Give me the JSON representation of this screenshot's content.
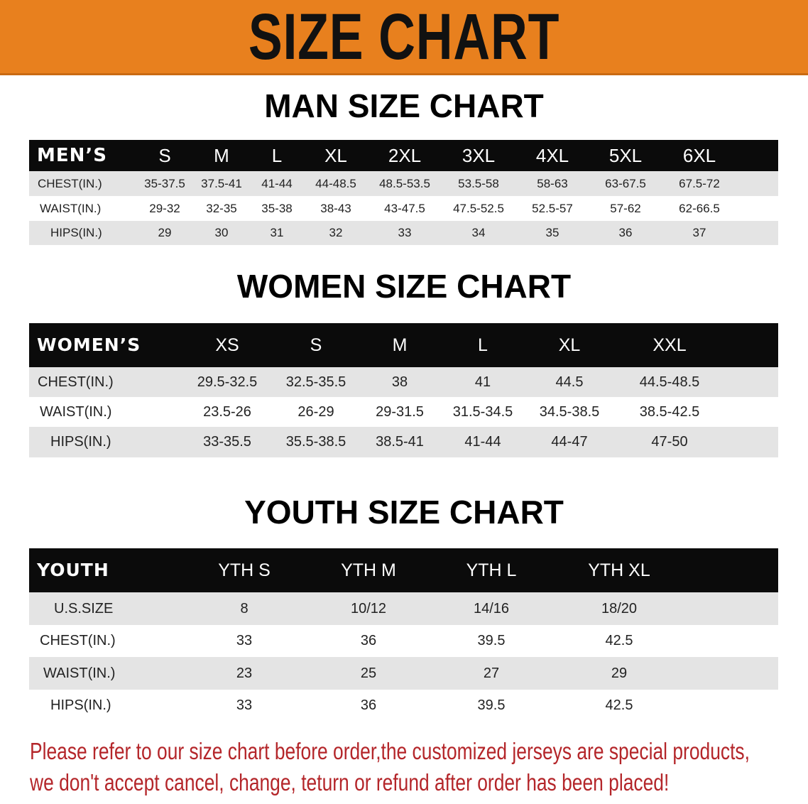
{
  "banner_title": "SIZE CHART",
  "men": {
    "title": "MAN SIZE CHART",
    "header": [
      "MEN’S",
      "S",
      "M",
      "L",
      "XL",
      "2XL",
      "3XL",
      "4XL",
      "5XL",
      "6XL"
    ],
    "rows": [
      [
        "CHEST(IN.)",
        "35-37.5",
        "37.5-41",
        "41-44",
        "44-48.5",
        "48.5-53.5",
        "53.5-58",
        "58-63",
        "63-67.5",
        "67.5-72"
      ],
      [
        "WAIST(IN.)",
        "29-32",
        "32-35",
        "35-38",
        "38-43",
        "43-47.5",
        "47.5-52.5",
        "52.5-57",
        "57-62",
        "62-66.5"
      ],
      [
        "HIPS(IN.)",
        "29",
        "30",
        "31",
        "32",
        "33",
        "34",
        "35",
        "36",
        "37"
      ]
    ]
  },
  "women": {
    "title": "WOMEN SIZE CHART",
    "header": [
      "WOMEN’S",
      "XS",
      "S",
      "M",
      "L",
      "XL",
      "XXL"
    ],
    "rows": [
      [
        "CHEST(IN.)",
        "29.5-32.5",
        "32.5-35.5",
        "38",
        "41",
        "44.5",
        "44.5-48.5"
      ],
      [
        "WAIST(IN.)",
        "23.5-26",
        "26-29",
        "29-31.5",
        "31.5-34.5",
        "34.5-38.5",
        "38.5-42.5"
      ],
      [
        "HIPS(IN.)",
        "33-35.5",
        "35.5-38.5",
        "38.5-41",
        "41-44",
        "44-47",
        "47-50"
      ]
    ]
  },
  "youth": {
    "title": "YOUTH SIZE CHART",
    "header": [
      "YOUTH",
      "YTH S",
      "YTH M",
      "YTH L",
      "YTH XL"
    ],
    "rows": [
      [
        "U.S.SIZE",
        "8",
        "10/12",
        "14/16",
        "18/20"
      ],
      [
        "CHEST(IN.)",
        "33",
        "36",
        "39.5",
        "42.5"
      ],
      [
        "WAIST(IN.)",
        "23",
        "25",
        "27",
        "29"
      ],
      [
        "HIPS(IN.)",
        "33",
        "36",
        "39.5",
        "42.5"
      ]
    ]
  },
  "notice": {
    "line1": "Please refer to our size chart before order,the customized jerseys are special products,",
    "line2": "we don't accept cancel, change, teturn or refund after order has been placed!"
  },
  "colors": {
    "banner": "#e8801e",
    "header_row": "#0b0b0b",
    "stripe": "#e4e4e4",
    "notice": "#b4262a"
  }
}
